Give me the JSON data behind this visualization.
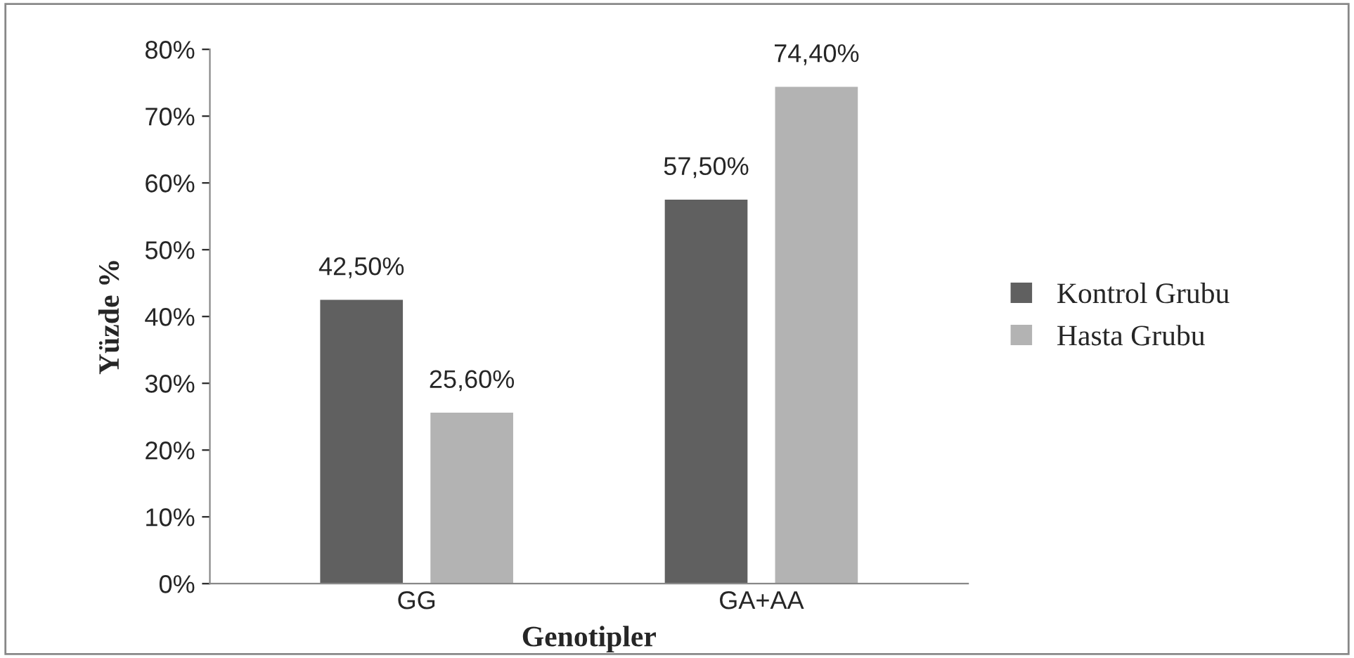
{
  "chart_data": {
    "type": "bar",
    "xlabel": "Genotipler",
    "ylabel": "Yüzde %",
    "categories": [
      "GG",
      "GA+AA"
    ],
    "series": [
      {
        "name": "Kontrol Grubu",
        "color": "#606060",
        "values": [
          42.5,
          57.5
        ],
        "value_labels": [
          "42,50%",
          "57,50%"
        ]
      },
      {
        "name": "Hasta Grubu",
        "color": "#b3b3b3",
        "values": [
          25.6,
          74.4
        ],
        "value_labels": [
          "25,60%",
          "74,40%"
        ]
      }
    ],
    "ylim": [
      0,
      80
    ],
    "yticks": [
      {
        "value": 0,
        "label": "0%"
      },
      {
        "value": 10,
        "label": "10%"
      },
      {
        "value": 20,
        "label": "20%"
      },
      {
        "value": 30,
        "label": "30%"
      },
      {
        "value": 40,
        "label": "40%"
      },
      {
        "value": 50,
        "label": "50%"
      },
      {
        "value": 60,
        "label": "60%"
      },
      {
        "value": 70,
        "label": "70%"
      },
      {
        "value": 80,
        "label": "80%"
      }
    ],
    "grid": false,
    "legend": "right"
  }
}
